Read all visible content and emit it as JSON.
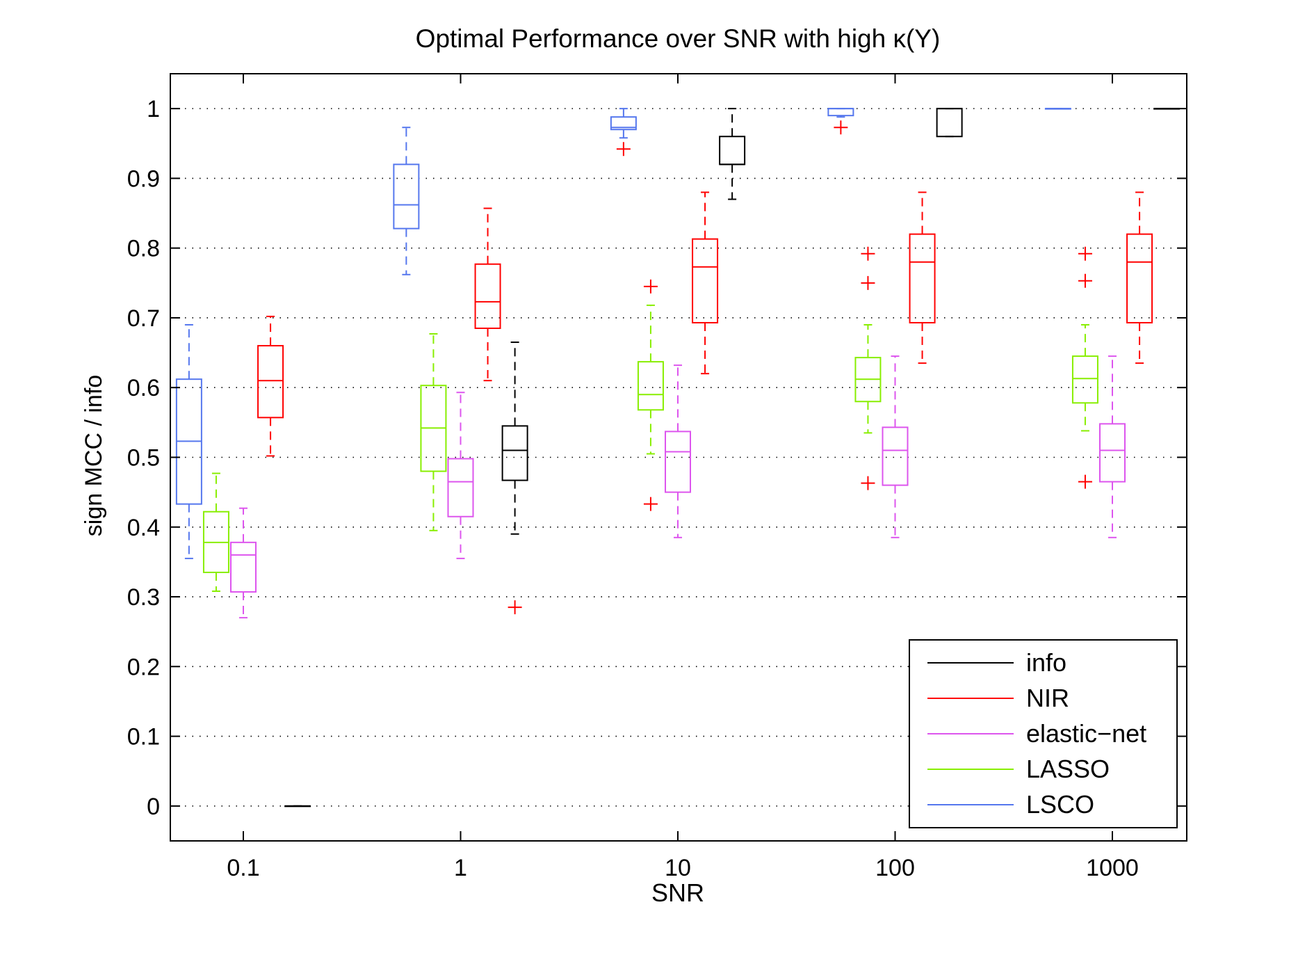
{
  "chart_data": {
    "type": "box",
    "title": "Optimal Performance over SNR with high κ(Y)",
    "xlabel": "SNR",
    "ylabel": "sign MCC / info",
    "ylim": [
      -0.05,
      1.05
    ],
    "yticks": [
      0,
      0.1,
      0.2,
      0.3,
      0.4,
      0.5,
      0.6,
      0.7,
      0.8,
      0.9,
      1
    ],
    "ytick_labels": [
      "0",
      "0.1",
      "0.2",
      "0.3",
      "0.4",
      "0.5",
      "0.6",
      "0.7",
      "0.8",
      "0.9",
      "1"
    ],
    "grid": "horizontal dotted",
    "categories": [
      "0.1",
      "1",
      "10",
      "100",
      "1000"
    ],
    "legend": {
      "placement": "bottom-right",
      "entries": [
        {
          "name": "info",
          "color": "#000000"
        },
        {
          "name": "NIR",
          "color": "#ff0000"
        },
        {
          "name": "elastic−net",
          "color": "#dd55ee"
        },
        {
          "name": "LASSO",
          "color": "#88ee00"
        },
        {
          "name": "LSCO",
          "color": "#5577ee"
        }
      ]
    },
    "series": [
      {
        "name": "LSCO",
        "color": "#5577ee",
        "offset": -0.25,
        "boxes": [
          {
            "whisker_low": 0.355,
            "q1": 0.433,
            "median": 0.523,
            "q3": 0.612,
            "whisker_high": 0.69,
            "outliers": []
          },
          {
            "whisker_low": 0.762,
            "q1": 0.828,
            "median": 0.862,
            "q3": 0.92,
            "whisker_high": 0.973,
            "outliers": []
          },
          {
            "whisker_low": 0.958,
            "q1": 0.97,
            "median": 0.973,
            "q3": 0.988,
            "whisker_high": 1.0,
            "outliers": [
              0.942
            ]
          },
          {
            "whisker_low": 0.988,
            "q1": 0.99,
            "median": 1.0,
            "q3": 1.0,
            "whisker_high": 1.0,
            "outliers": [
              0.973
            ]
          },
          {
            "whisker_low": 1.0,
            "q1": 1.0,
            "median": 1.0,
            "q3": 1.0,
            "whisker_high": 1.0,
            "outliers": []
          }
        ]
      },
      {
        "name": "LASSO",
        "color": "#88ee00",
        "offset": -0.125,
        "boxes": [
          {
            "whisker_low": 0.308,
            "q1": 0.335,
            "median": 0.378,
            "q3": 0.422,
            "whisker_high": 0.477,
            "outliers": []
          },
          {
            "whisker_low": 0.395,
            "q1": 0.48,
            "median": 0.542,
            "q3": 0.603,
            "whisker_high": 0.677,
            "outliers": []
          },
          {
            "whisker_low": 0.505,
            "q1": 0.568,
            "median": 0.59,
            "q3": 0.637,
            "whisker_high": 0.718,
            "outliers": [
              0.433,
              0.745
            ]
          },
          {
            "whisker_low": 0.535,
            "q1": 0.58,
            "median": 0.612,
            "q3": 0.643,
            "whisker_high": 0.69,
            "outliers": [
              0.463,
              0.75,
              0.792
            ]
          },
          {
            "whisker_low": 0.538,
            "q1": 0.578,
            "median": 0.613,
            "q3": 0.645,
            "whisker_high": 0.69,
            "outliers": [
              0.465,
              0.753,
              0.792
            ]
          }
        ]
      },
      {
        "name": "elastic−net",
        "color": "#dd55ee",
        "offset": 0.0,
        "boxes": [
          {
            "whisker_low": 0.27,
            "q1": 0.307,
            "median": 0.36,
            "q3": 0.378,
            "whisker_high": 0.427,
            "outliers": []
          },
          {
            "whisker_low": 0.355,
            "q1": 0.415,
            "median": 0.465,
            "q3": 0.498,
            "whisker_high": 0.593,
            "outliers": []
          },
          {
            "whisker_low": 0.385,
            "q1": 0.45,
            "median": 0.508,
            "q3": 0.537,
            "whisker_high": 0.632,
            "outliers": []
          },
          {
            "whisker_low": 0.385,
            "q1": 0.46,
            "median": 0.51,
            "q3": 0.543,
            "whisker_high": 0.645,
            "outliers": []
          },
          {
            "whisker_low": 0.385,
            "q1": 0.465,
            "median": 0.51,
            "q3": 0.548,
            "whisker_high": 0.645,
            "outliers": []
          }
        ]
      },
      {
        "name": "NIR",
        "color": "#ff0000",
        "offset": 0.125,
        "boxes": [
          {
            "whisker_low": 0.502,
            "q1": 0.557,
            "median": 0.61,
            "q3": 0.66,
            "whisker_high": 0.702,
            "outliers": []
          },
          {
            "whisker_low": 0.61,
            "q1": 0.685,
            "median": 0.723,
            "q3": 0.777,
            "whisker_high": 0.857,
            "outliers": []
          },
          {
            "whisker_low": 0.62,
            "q1": 0.693,
            "median": 0.773,
            "q3": 0.813,
            "whisker_high": 0.88,
            "outliers": []
          },
          {
            "whisker_low": 0.635,
            "q1": 0.693,
            "median": 0.78,
            "q3": 0.82,
            "whisker_high": 0.88,
            "outliers": []
          },
          {
            "whisker_low": 0.635,
            "q1": 0.693,
            "median": 0.78,
            "q3": 0.82,
            "whisker_high": 0.88,
            "outliers": []
          }
        ]
      },
      {
        "name": "info",
        "color": "#000000",
        "offset": 0.25,
        "boxes": [
          {
            "whisker_low": 0.0,
            "q1": 0.0,
            "median": 0.0,
            "q3": 0.0,
            "whisker_high": 0.0,
            "outliers": []
          },
          {
            "whisker_low": 0.39,
            "q1": 0.467,
            "median": 0.51,
            "q3": 0.545,
            "whisker_high": 0.665,
            "outliers": [
              0.285
            ]
          },
          {
            "whisker_low": 0.87,
            "q1": 0.92,
            "median": 0.92,
            "q3": 0.96,
            "whisker_high": 1.0,
            "outliers": []
          },
          {
            "whisker_low": 0.96,
            "q1": 0.96,
            "median": 1.0,
            "q3": 1.0,
            "whisker_high": 1.0,
            "outliers": []
          },
          {
            "whisker_low": 1.0,
            "q1": 1.0,
            "median": 1.0,
            "q3": 1.0,
            "whisker_high": 1.0,
            "outliers": []
          }
        ]
      }
    ]
  }
}
